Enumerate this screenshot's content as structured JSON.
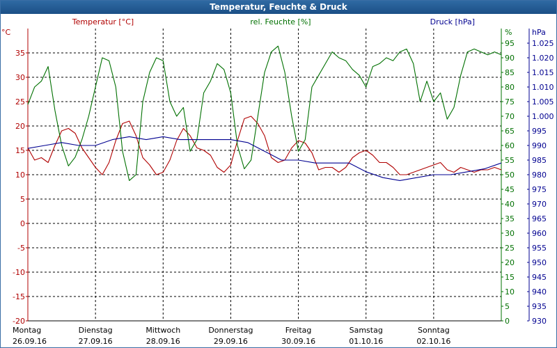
{
  "window": {
    "title": "Temperatur, Feuchte & Druck"
  },
  "chart_data": {
    "type": "line",
    "title": "Temperatur, Feuchte & Druck",
    "grid": true,
    "axes": {
      "temperature": {
        "label": "Temperatur [°C]",
        "unit": "°C",
        "range": [
          -20,
          40
        ],
        "ticks": [
          "35",
          "30",
          "25",
          "20",
          "15",
          "10",
          "5",
          "0",
          "-5",
          "-10",
          "-15",
          "-20"
        ],
        "color": "#b00000"
      },
      "humidity": {
        "label": "rel. Feuchte [%]",
        "unit": "%",
        "range": [
          0,
          100
        ],
        "ticks": [
          "95",
          "90",
          "85",
          "80",
          "75",
          "70",
          "65",
          "60",
          "55",
          "50",
          "45",
          "40",
          "35",
          "30",
          "25",
          "20",
          "15",
          "10",
          "5",
          "0"
        ],
        "color": "#007000"
      },
      "pressure": {
        "label": "Druck [hPa]",
        "unit": "hPa",
        "range": [
          930,
          1030
        ],
        "ticks": [
          "1.025",
          "1.020",
          "1.015",
          "1.010",
          "1.005",
          "1.000",
          "995",
          "990",
          "985",
          "980",
          "975",
          "970",
          "965",
          "960",
          "955",
          "950",
          "945",
          "940",
          "935",
          "930"
        ],
        "color": "#000090"
      }
    },
    "x_days": [
      {
        "day": "Montag",
        "date": "26.09.16"
      },
      {
        "day": "Dienstag",
        "date": "27.09.16"
      },
      {
        "day": "Mittwoch",
        "date": "28.09.16"
      },
      {
        "day": "Donnerstag",
        "date": "29.09.16"
      },
      {
        "day": "Freitag",
        "date": "30.09.16"
      },
      {
        "day": "Samstag",
        "date": "01.10.16"
      },
      {
        "day": "Sonntag",
        "date": "02.10.16"
      }
    ],
    "x_range_days": [
      0,
      7
    ],
    "series": [
      {
        "name": "Temperatur [°C]",
        "axis": "temperature",
        "color": "#b00000",
        "t": [
          0,
          0.1,
          0.2,
          0.3,
          0.4,
          0.5,
          0.6,
          0.7,
          0.8,
          0.9,
          1.0,
          1.1,
          1.2,
          1.3,
          1.4,
          1.5,
          1.6,
          1.7,
          1.8,
          1.9,
          2.0,
          2.1,
          2.2,
          2.3,
          2.4,
          2.5,
          2.6,
          2.7,
          2.8,
          2.9,
          3.0,
          3.1,
          3.2,
          3.3,
          3.4,
          3.5,
          3.6,
          3.7,
          3.8,
          3.9,
          4.0,
          4.1,
          4.2,
          4.3,
          4.4,
          4.5,
          4.6,
          4.7,
          4.8,
          4.9,
          5.0,
          5.1,
          5.2,
          5.3,
          5.4,
          5.5,
          5.6,
          5.7,
          5.8,
          5.9,
          6.0,
          6.1,
          6.2,
          6.3,
          6.4,
          6.5,
          6.6,
          6.7,
          6.8,
          6.9,
          7.0
        ],
        "values": [
          15.5,
          13.0,
          13.5,
          12.5,
          16.0,
          19.0,
          19.5,
          18.5,
          15.5,
          13.5,
          11.5,
          10.0,
          12.5,
          17.0,
          20.5,
          21.0,
          18.0,
          13.5,
          12.0,
          10.0,
          10.5,
          13.0,
          17.0,
          19.5,
          18.0,
          15.5,
          15.0,
          14.0,
          11.5,
          10.5,
          12.0,
          17.0,
          21.5,
          22.0,
          20.5,
          18.0,
          13.5,
          12.5,
          13.0,
          15.5,
          17.0,
          16.5,
          14.5,
          11.0,
          11.5,
          11.5,
          10.5,
          11.5,
          13.5,
          14.5,
          15.0,
          14.0,
          12.5,
          12.5,
          11.5,
          10.0,
          10.0,
          10.5,
          11.0,
          11.5,
          12.0,
          12.5,
          11.0,
          10.5,
          11.5,
          11.0,
          10.5,
          11.0,
          11.0,
          11.5,
          11.0
        ]
      },
      {
        "name": "rel. Feuchte [%]",
        "axis": "humidity",
        "color": "#007000",
        "t": [
          0,
          0.1,
          0.2,
          0.3,
          0.4,
          0.5,
          0.6,
          0.7,
          0.8,
          0.9,
          1.0,
          1.1,
          1.2,
          1.3,
          1.4,
          1.5,
          1.6,
          1.7,
          1.8,
          1.9,
          2.0,
          2.1,
          2.2,
          2.3,
          2.4,
          2.5,
          2.6,
          2.7,
          2.8,
          2.9,
          3.0,
          3.1,
          3.2,
          3.3,
          3.4,
          3.5,
          3.6,
          3.7,
          3.8,
          3.9,
          4.0,
          4.1,
          4.2,
          4.3,
          4.4,
          4.5,
          4.6,
          4.7,
          4.8,
          4.9,
          5.0,
          5.1,
          5.2,
          5.3,
          5.4,
          5.5,
          5.6,
          5.7,
          5.8,
          5.9,
          6.0,
          6.1,
          6.2,
          6.3,
          6.4,
          6.5,
          6.6,
          6.7,
          6.8,
          6.9,
          7.0
        ],
        "values": [
          74,
          80,
          82,
          87,
          72,
          60,
          53,
          56,
          62,
          70,
          80,
          90,
          89,
          80,
          58,
          48,
          50,
          75,
          85,
          90,
          89,
          75,
          70,
          73,
          58,
          62,
          78,
          82,
          88,
          86,
          78,
          60,
          52,
          55,
          70,
          85,
          92,
          94,
          85,
          70,
          58,
          62,
          80,
          84,
          88,
          92,
          90,
          89,
          86,
          84,
          80,
          87,
          88,
          90,
          89,
          92,
          93,
          88,
          75,
          82,
          75,
          78,
          69,
          73,
          84,
          92,
          93,
          92,
          91,
          92,
          91
        ]
      },
      {
        "name": "Druck [hPa]",
        "axis": "pressure",
        "color": "#000090",
        "t": [
          0,
          0.25,
          0.5,
          0.75,
          1.0,
          1.25,
          1.5,
          1.75,
          2.0,
          2.25,
          2.5,
          2.75,
          3.0,
          3.25,
          3.5,
          3.75,
          4.0,
          4.25,
          4.5,
          4.75,
          5.0,
          5.25,
          5.5,
          5.75,
          6.0,
          6.25,
          6.5,
          6.75,
          7.0
        ],
        "values": [
          989,
          990,
          991,
          990,
          990,
          992,
          993,
          992,
          993,
          992,
          992,
          992,
          992,
          991,
          988,
          985,
          985,
          984,
          984,
          984,
          981,
          979,
          978,
          979,
          980,
          980,
          981,
          982,
          984
        ]
      }
    ]
  }
}
